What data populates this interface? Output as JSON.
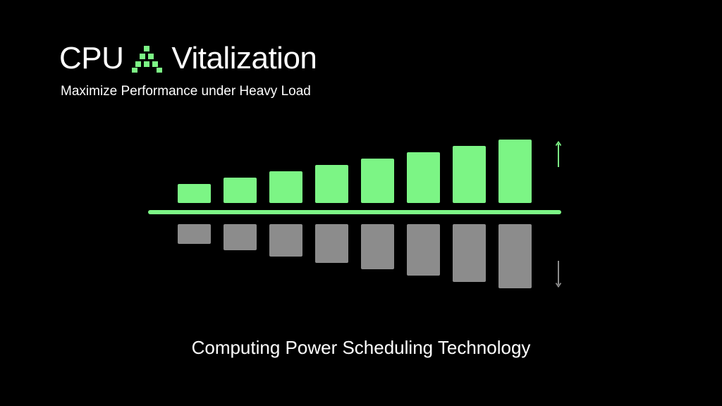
{
  "header": {
    "title_left": "CPU",
    "title_right": "Vitalization",
    "logo_icon": "pixel-triangle-logo-icon",
    "subtitle": "Maximize Performance under Heavy Load"
  },
  "graphic": {
    "performance_levels": [
      1,
      2,
      3,
      4,
      5,
      6,
      7,
      8
    ],
    "load_levels": [
      1,
      2,
      3,
      4,
      5,
      6,
      7,
      8
    ],
    "up_arrow_icon": "arrow-up-icon",
    "down_arrow_icon": "arrow-down-icon"
  },
  "caption": "Computing Power Scheduling Technology",
  "colors": {
    "background": "#000000",
    "accent": "#7CF585",
    "gray": "#8C8C8C",
    "text": "#FFFFFF"
  }
}
